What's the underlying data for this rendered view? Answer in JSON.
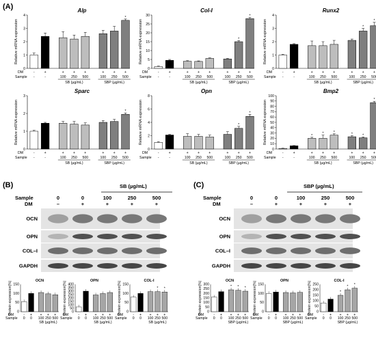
{
  "panels": {
    "A": "(A)",
    "B": "(B)",
    "C": "(C)"
  },
  "qpcr": {
    "y_label": "Relative mRNA expression",
    "row_labels": {
      "dm": "DM",
      "sample": "Sample"
    },
    "dm_marks": [
      "-",
      "+",
      "+",
      "+",
      "+",
      "+",
      "+",
      "+"
    ],
    "sample_marks": [
      "-",
      "-",
      "100",
      "250",
      "500",
      "100",
      "250",
      "500"
    ],
    "group_labels": [
      "SB (µg/mL)",
      "SBP (µg/mL)"
    ],
    "bar_colors": [
      "#ffffff",
      "#000000",
      "#bdbdbd",
      "#bdbdbd",
      "#bdbdbd",
      "#7f7f7f",
      "#7f7f7f",
      "#7f7f7f"
    ],
    "charts": [
      {
        "title": "Alp",
        "ymax": 4,
        "yticks": [
          "0",
          "1",
          "2",
          "3",
          "4"
        ],
        "values": [
          1.0,
          2.4,
          2.3,
          2.2,
          2.4,
          2.6,
          2.8,
          3.6
        ],
        "errors": [
          0.15,
          0.25,
          0.45,
          0.3,
          0.3,
          0.25,
          0.35,
          0.1
        ],
        "sig": [
          false,
          false,
          false,
          false,
          false,
          false,
          false,
          true
        ]
      },
      {
        "title": "Col-I",
        "ymax": 30,
        "yticks": [
          "0",
          "5",
          "10",
          "15",
          "20",
          "25",
          "30"
        ],
        "values": [
          1.0,
          4.5,
          4.0,
          3.9,
          5.6,
          5.3,
          15.0,
          28.0
        ],
        "errors": [
          0.3,
          0.5,
          0.3,
          0.3,
          0.3,
          0.3,
          0.6,
          0.6
        ],
        "sig": [
          false,
          false,
          false,
          false,
          false,
          false,
          true,
          true
        ]
      },
      {
        "title": "Runx2",
        "ymax": 4,
        "yticks": [
          "0",
          "1",
          "2",
          "3",
          "4"
        ],
        "values": [
          1.0,
          1.8,
          1.7,
          1.7,
          1.8,
          2.1,
          2.8,
          3.2
        ],
        "errors": [
          0.05,
          0.05,
          0.35,
          0.3,
          0.3,
          0.1,
          0.2,
          0.25
        ],
        "sig": [
          false,
          false,
          false,
          false,
          false,
          false,
          true,
          true
        ]
      },
      {
        "title": "Sparc",
        "ymax": 3,
        "yticks": [
          "0",
          "1",
          "2",
          "3"
        ],
        "values": [
          1.0,
          1.45,
          1.45,
          1.4,
          1.35,
          1.5,
          1.55,
          1.95
        ],
        "errors": [
          0.05,
          0.05,
          0.1,
          0.15,
          0.12,
          0.1,
          0.12,
          0.08
        ],
        "sig": [
          false,
          false,
          false,
          false,
          false,
          false,
          false,
          true
        ]
      },
      {
        "title": "Opn",
        "ymax": 8,
        "yticks": [
          "0",
          "2",
          "4",
          "6",
          "8"
        ],
        "values": [
          1.0,
          2.1,
          1.9,
          1.9,
          1.8,
          2.2,
          3.1,
          4.9
        ],
        "errors": [
          0.1,
          0.1,
          0.4,
          0.3,
          0.3,
          0.4,
          0.3,
          0.3
        ],
        "sig": [
          false,
          false,
          false,
          false,
          false,
          false,
          true,
          true
        ]
      },
      {
        "title": "Bmp2",
        "ymax": 100,
        "yticks": [
          "0",
          "10",
          "20",
          "30",
          "40",
          "50",
          "60",
          "70",
          "80",
          "90",
          "100"
        ],
        "values": [
          1.0,
          6.0,
          20.0,
          20.0,
          26.0,
          23.0,
          21.0,
          87.0
        ],
        "errors": [
          0.5,
          0.5,
          2.0,
          6.0,
          2.5,
          2.0,
          1.5,
          2.5
        ],
        "sig": [
          false,
          false,
          true,
          true,
          true,
          true,
          true,
          true
        ]
      }
    ]
  },
  "blot": {
    "sample_label": "Sample",
    "dm_label": "DM",
    "sample_values": [
      "0",
      "0",
      "100",
      "250",
      "500"
    ],
    "dm_values": [
      "–",
      "+",
      "+",
      "+",
      "+"
    ],
    "bands": [
      "OCN",
      "OPN",
      "COL–I",
      "GAPDH"
    ],
    "B_header": "SB (µg/mL)",
    "C_header": "SBP (µg/mL)"
  },
  "protein": {
    "y_label": "Protein expression(%)",
    "dm_marks": [
      "-",
      "+",
      "+",
      "+",
      "+"
    ],
    "sample_marks": [
      "0",
      "0",
      "100",
      "250",
      "500"
    ],
    "bar_colors": [
      "#ffffff",
      "#000000",
      "#a6a6a6",
      "#a6a6a6",
      "#a6a6a6"
    ],
    "B": {
      "unit": "SB (µg/mL)",
      "charts": [
        {
          "title": "OCN",
          "ymax": 150,
          "yticks": [
            "0",
            "50",
            "100",
            "150"
          ],
          "values": [
            55,
            100,
            105,
            98,
            93
          ],
          "sig": [
            false,
            false,
            false,
            false,
            false
          ]
        },
        {
          "title": "OPN",
          "ymax": 400,
          "yticks": [
            "0",
            "50",
            "100",
            "150",
            "200",
            "250",
            "300",
            "350",
            "400"
          ],
          "values": [
            70,
            300,
            245,
            265,
            280
          ],
          "sig": [
            false,
            false,
            false,
            false,
            false
          ]
        },
        {
          "title": "COL-I",
          "ymax": 150,
          "yticks": [
            "0",
            "50",
            "100",
            "150"
          ],
          "values": [
            80,
            100,
            110,
            110,
            108
          ],
          "sig": [
            false,
            false,
            false,
            true,
            true
          ]
        }
      ]
    },
    "C": {
      "unit": "SBP (µg/mL)",
      "charts": [
        {
          "title": "OCN",
          "ymax": 300,
          "yticks": [
            "0",
            "50",
            "100",
            "150",
            "200",
            "250",
            "300"
          ],
          "values": [
            160,
            220,
            240,
            235,
            225
          ],
          "sig": [
            false,
            false,
            true,
            true,
            true
          ]
        },
        {
          "title": "OPN",
          "ymax": 150,
          "yticks": [
            "0",
            "50",
            "100",
            "150"
          ],
          "values": [
            100,
            108,
            105,
            103,
            106
          ],
          "sig": [
            false,
            false,
            false,
            false,
            false
          ]
        },
        {
          "title": "COL-I",
          "ymax": 250,
          "yticks": [
            "0",
            "50",
            "100",
            "150",
            "200",
            "250"
          ],
          "values": [
            80,
            115,
            150,
            200,
            215
          ],
          "sig": [
            false,
            false,
            true,
            true,
            true
          ]
        }
      ]
    }
  }
}
